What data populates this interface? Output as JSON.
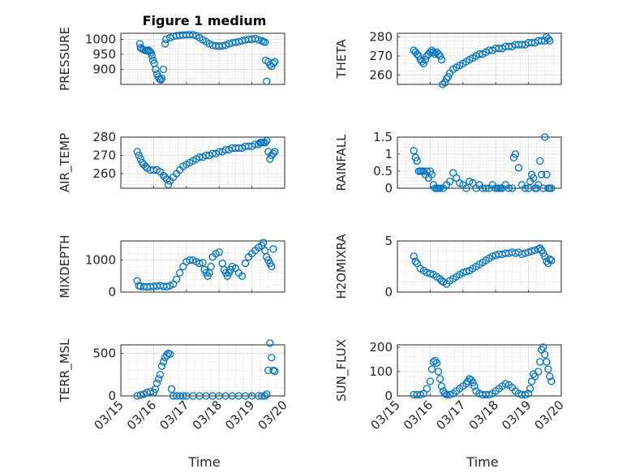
{
  "figure_title": "Figure 1 medium",
  "marker_color": "#0072BD",
  "xlabel": "Time",
  "xticks": [
    {
      "t": 0,
      "label": "03/15"
    },
    {
      "t": 1,
      "label": "03/16"
    },
    {
      "t": 2,
      "label": "03/17"
    },
    {
      "t": 3,
      "label": "03/18"
    },
    {
      "t": 4,
      "label": "03/19"
    },
    {
      "t": 5,
      "label": "03/20"
    }
  ],
  "chart_data": [
    {
      "type": "scatter",
      "id": "pressure",
      "ylabel": "PRESSURE",
      "ylim": [
        850,
        1020
      ],
      "yticks": [
        900,
        950,
        1000
      ],
      "xlim": [
        0,
        5
      ],
      "x": [
        0.58,
        0.6,
        0.65,
        0.7,
        0.75,
        0.8,
        0.85,
        0.88,
        0.92,
        0.95,
        0.98,
        1.02,
        1.06,
        1.1,
        1.14,
        1.18,
        1.22,
        1.25,
        1.3,
        1.35,
        1.38,
        1.5,
        1.6,
        1.7,
        1.8,
        1.9,
        2.0,
        2.1,
        2.2,
        2.3,
        2.4,
        2.5,
        2.6,
        2.7,
        2.8,
        2.9,
        3.0,
        3.1,
        3.2,
        3.3,
        3.4,
        3.5,
        3.6,
        3.7,
        3.8,
        3.9,
        4.0,
        4.1,
        4.2,
        4.3,
        4.35,
        4.4,
        4.42,
        4.45,
        4.5,
        4.55,
        4.6,
        4.65,
        4.7
      ],
      "y": [
        985,
        972,
        968,
        965,
        963,
        962,
        964,
        960,
        955,
        945,
        930,
        920,
        900,
        885,
        875,
        868,
        865,
        870,
        900,
        985,
        1000,
        1005,
        1010,
        1012,
        1013,
        1014,
        1015,
        1015,
        1015,
        1012,
        1005,
        998,
        992,
        985,
        980,
        978,
        977,
        978,
        980,
        985,
        988,
        990,
        992,
        995,
        998,
        1000,
        1000,
        1002,
        998,
        995,
        992,
        990,
        930,
        860,
        925,
        915,
        910,
        920,
        925
      ]
    },
    {
      "type": "scatter",
      "id": "theta",
      "ylabel": "THETA",
      "ylim": [
        255,
        282
      ],
      "yticks": [
        260,
        270,
        280
      ],
      "xlim": [
        0,
        5
      ],
      "x": [
        0.5,
        0.55,
        0.6,
        0.65,
        0.7,
        0.75,
        0.8,
        0.85,
        0.9,
        0.95,
        1.0,
        1.05,
        1.1,
        1.15,
        1.2,
        1.25,
        1.3,
        1.35,
        1.38,
        1.45,
        1.5,
        1.55,
        1.6,
        1.7,
        1.8,
        1.9,
        2.0,
        2.1,
        2.2,
        2.3,
        2.4,
        2.5,
        2.6,
        2.7,
        2.8,
        2.9,
        3.0,
        3.1,
        3.2,
        3.3,
        3.4,
        3.5,
        3.6,
        3.7,
        3.8,
        3.9,
        4.0,
        4.1,
        4.2,
        4.3,
        4.4,
        4.5,
        4.55,
        4.6,
        4.65
      ],
      "y": [
        273,
        272,
        271,
        270,
        268,
        267,
        266,
        268,
        270,
        271,
        272,
        273,
        272,
        271,
        272,
        271,
        270,
        268,
        255,
        256,
        258,
        259,
        261,
        263,
        264,
        265,
        266,
        267,
        268,
        269,
        270,
        271,
        271,
        272,
        273,
        273,
        274,
        274,
        274,
        275,
        275,
        275,
        276,
        276,
        276,
        276,
        277,
        277,
        277,
        278,
        278,
        278,
        280,
        279,
        278
      ]
    },
    {
      "type": "scatter",
      "id": "air_temp",
      "ylabel": "AIR_TEMP",
      "ylim": [
        252,
        280
      ],
      "yticks": [
        260,
        270,
        280
      ],
      "xlim": [
        0,
        5
      ],
      "x": [
        0.5,
        0.55,
        0.6,
        0.65,
        0.7,
        0.75,
        0.8,
        0.9,
        1.0,
        1.1,
        1.2,
        1.3,
        1.35,
        1.4,
        1.45,
        1.5,
        1.6,
        1.7,
        1.8,
        1.9,
        2.0,
        2.1,
        2.2,
        2.3,
        2.4,
        2.5,
        2.6,
        2.7,
        2.8,
        2.9,
        3.0,
        3.1,
        3.2,
        3.3,
        3.4,
        3.5,
        3.6,
        3.7,
        3.8,
        3.9,
        4.0,
        4.1,
        4.2,
        4.25,
        4.3,
        4.35,
        4.4,
        4.45,
        4.5,
        4.55,
        4.6,
        4.65,
        4.7
      ],
      "y": [
        272,
        270,
        268,
        266,
        265,
        264,
        263,
        262,
        262,
        262,
        261,
        259,
        258,
        257,
        254,
        256,
        258,
        260,
        262,
        264,
        265,
        266,
        267,
        268,
        269,
        269,
        270,
        270,
        271,
        271,
        272,
        272,
        273,
        273,
        274,
        274,
        274,
        274,
        275,
        275,
        275,
        276,
        276,
        277,
        277,
        277,
        277,
        278,
        272,
        268,
        270,
        271,
        272
      ]
    },
    {
      "type": "scatter",
      "id": "rainfall",
      "ylabel": "RAINFALL",
      "ylim": [
        0,
        1.5
      ],
      "yticks": [
        0,
        0.5,
        1,
        1.5
      ],
      "xlim": [
        0,
        5
      ],
      "x": [
        0.5,
        0.55,
        0.6,
        0.65,
        0.7,
        0.75,
        0.8,
        0.85,
        0.9,
        0.95,
        1.0,
        1.05,
        1.1,
        1.15,
        1.2,
        1.25,
        1.3,
        1.4,
        1.5,
        1.6,
        1.7,
        1.8,
        1.9,
        2.0,
        2.1,
        2.2,
        2.3,
        2.4,
        2.5,
        2.6,
        2.7,
        2.8,
        2.9,
        3.0,
        3.05,
        3.1,
        3.15,
        3.2,
        3.3,
        3.4,
        3.5,
        3.55,
        3.6,
        3.7,
        3.8,
        3.9,
        4.0,
        4.05,
        4.1,
        4.15,
        4.2,
        4.25,
        4.3,
        4.35,
        4.4,
        4.45,
        4.5,
        4.55,
        4.6,
        4.65,
        4.7
      ],
      "y": [
        1.1,
        0.9,
        0.8,
        0.5,
        0.5,
        0.5,
        0.5,
        0.4,
        0.5,
        0.3,
        0.5,
        0.4,
        0.1,
        0.0,
        0.0,
        0.0,
        0.0,
        0.0,
        0.1,
        0.2,
        0.45,
        0.3,
        0.15,
        0.1,
        0.0,
        0.2,
        0.15,
        0.0,
        0.1,
        0.0,
        0.0,
        0.0,
        0.1,
        0.0,
        0.0,
        0.0,
        0.0,
        0.0,
        0.1,
        0.0,
        0.0,
        0.9,
        1.0,
        0.6,
        0.1,
        0.0,
        0.0,
        0.2,
        0.4,
        0.3,
        0.0,
        0.0,
        0.1,
        0.8,
        0.4,
        0.0,
        1.5,
        0.4,
        0.0,
        0.0,
        0.0
      ]
    },
    {
      "type": "scatter",
      "id": "mixdepth",
      "ylabel": "MIXDEPTH",
      "ylim": [
        0,
        1600
      ],
      "yticks": [
        0,
        1000
      ],
      "xlim": [
        0,
        5
      ],
      "x": [
        0.5,
        0.55,
        0.6,
        0.7,
        0.8,
        0.9,
        1.0,
        1.1,
        1.2,
        1.3,
        1.4,
        1.5,
        1.6,
        1.7,
        1.8,
        1.9,
        2.0,
        2.1,
        2.2,
        2.3,
        2.4,
        2.5,
        2.55,
        2.6,
        2.65,
        2.7,
        2.75,
        2.8,
        2.9,
        3.0,
        3.1,
        3.15,
        3.2,
        3.25,
        3.3,
        3.35,
        3.4,
        3.5,
        3.6,
        3.7,
        3.8,
        3.9,
        4.0,
        4.1,
        4.2,
        4.3,
        4.35,
        4.4,
        4.45,
        4.5,
        4.55,
        4.6,
        4.65
      ],
      "y": [
        350,
        200,
        180,
        170,
        160,
        170,
        180,
        190,
        200,
        180,
        170,
        200,
        250,
        400,
        600,
        800,
        950,
        1000,
        1000,
        950,
        900,
        920,
        700,
        600,
        500,
        600,
        800,
        1100,
        1200,
        1250,
        900,
        700,
        600,
        500,
        600,
        700,
        800,
        750,
        600,
        500,
        900,
        1100,
        1200,
        1300,
        1400,
        1450,
        1550,
        1300,
        1100,
        1000,
        900,
        800,
        1350
      ]
    },
    {
      "type": "scatter",
      "id": "h2omixra",
      "ylabel": "H2OMIXRA",
      "ylim": [
        0,
        5
      ],
      "yticks": [
        0,
        5
      ],
      "xlim": [
        0,
        5
      ],
      "x": [
        0.5,
        0.55,
        0.6,
        0.7,
        0.8,
        0.9,
        1.0,
        1.1,
        1.2,
        1.3,
        1.35,
        1.4,
        1.5,
        1.6,
        1.7,
        1.8,
        1.9,
        2.0,
        2.1,
        2.2,
        2.3,
        2.4,
        2.5,
        2.6,
        2.7,
        2.8,
        2.9,
        3.0,
        3.1,
        3.2,
        3.3,
        3.4,
        3.5,
        3.6,
        3.7,
        3.8,
        3.9,
        4.0,
        4.1,
        4.2,
        4.3,
        4.35,
        4.4,
        4.45,
        4.5,
        4.55,
        4.6,
        4.65,
        4.7
      ],
      "y": [
        3.5,
        3.0,
        2.8,
        2.3,
        2.1,
        1.9,
        1.8,
        1.7,
        1.5,
        1.3,
        1.1,
        1.0,
        0.8,
        1.1,
        1.3,
        1.5,
        1.7,
        1.9,
        2.0,
        2.1,
        2.3,
        2.5,
        2.7,
        2.9,
        3.1,
        3.3,
        3.5,
        3.6,
        3.7,
        3.7,
        3.8,
        3.8,
        3.9,
        3.8,
        3.9,
        3.7,
        3.8,
        3.9,
        4.0,
        4.1,
        4.2,
        4.3,
        4.1,
        3.8,
        3.5,
        3.0,
        2.8,
        3.2,
        3.1
      ]
    },
    {
      "type": "scatter",
      "id": "terr_msl",
      "ylabel": "TERR_MSL",
      "ylim": [
        0,
        600
      ],
      "yticks": [
        0,
        500
      ],
      "xlim": [
        0,
        5
      ],
      "x": [
        0.5,
        0.6,
        0.7,
        0.8,
        0.9,
        1.0,
        1.05,
        1.1,
        1.15,
        1.2,
        1.25,
        1.3,
        1.35,
        1.4,
        1.45,
        1.5,
        1.55,
        1.6,
        1.7,
        1.8,
        1.9,
        2.0,
        2.2,
        2.4,
        2.6,
        2.8,
        3.0,
        3.2,
        3.4,
        3.6,
        3.8,
        4.0,
        4.2,
        4.3,
        4.4,
        4.45,
        4.5,
        4.55,
        4.6,
        4.65,
        4.7
      ],
      "y": [
        0,
        10,
        20,
        40,
        50,
        40,
        80,
        150,
        200,
        250,
        350,
        400,
        450,
        480,
        500,
        490,
        80,
        0,
        0,
        0,
        0,
        0,
        0,
        0,
        0,
        0,
        0,
        0,
        0,
        0,
        0,
        0,
        0,
        0,
        0,
        20,
        300,
        620,
        450,
        300,
        290
      ]
    },
    {
      "type": "scatter",
      "id": "sun_flux",
      "ylabel": "SUN_FLUX",
      "ylim": [
        0,
        210
      ],
      "yticks": [
        0,
        100,
        200
      ],
      "xlim": [
        0,
        5
      ],
      "x": [
        0.5,
        0.6,
        0.7,
        0.8,
        0.9,
        1.0,
        1.05,
        1.1,
        1.15,
        1.2,
        1.25,
        1.3,
        1.35,
        1.4,
        1.45,
        1.5,
        1.6,
        1.7,
        1.8,
        1.9,
        2.0,
        2.1,
        2.15,
        2.2,
        2.25,
        2.3,
        2.35,
        2.4,
        2.5,
        2.6,
        2.7,
        2.8,
        2.9,
        3.0,
        3.1,
        3.2,
        3.3,
        3.4,
        3.5,
        3.6,
        3.7,
        3.8,
        3.9,
        4.0,
        4.05,
        4.1,
        4.15,
        4.2,
        4.3,
        4.35,
        4.4,
        4.45,
        4.5,
        4.55,
        4.6,
        4.65,
        4.7
      ],
      "y": [
        5,
        5,
        5,
        10,
        30,
        60,
        110,
        140,
        145,
        135,
        100,
        70,
        40,
        20,
        10,
        5,
        5,
        10,
        20,
        30,
        40,
        50,
        60,
        70,
        65,
        55,
        40,
        20,
        10,
        5,
        5,
        5,
        10,
        20,
        30,
        40,
        50,
        45,
        35,
        20,
        10,
        5,
        5,
        10,
        30,
        60,
        90,
        80,
        100,
        140,
        190,
        200,
        170,
        140,
        110,
        80,
        60
      ]
    }
  ]
}
